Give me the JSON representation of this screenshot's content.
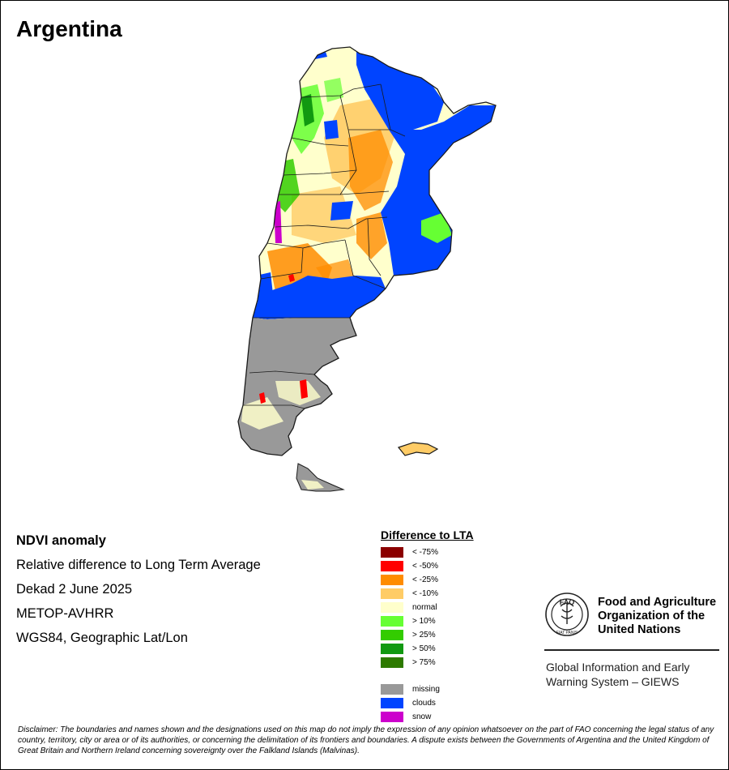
{
  "map": {
    "title": "Argentina",
    "colors": {
      "border": "#1a1a1a",
      "ocean": "#ffffff"
    }
  },
  "info": {
    "lines": [
      "NDVI anomaly",
      "Relative difference to Long Term Average",
      "Dekad 2 June 2025",
      "METOP-AVHRR",
      "WGS84, Geographic Lat/Lon"
    ]
  },
  "legend": {
    "title": "Difference to LTA",
    "items": [
      {
        "label": "< -75%",
        "color": "#8b0000"
      },
      {
        "label": "< -50%",
        "color": "#ff0000"
      },
      {
        "label": "< -25%",
        "color": "#ff8c00"
      },
      {
        "label": "< -10%",
        "color": "#ffcc66"
      },
      {
        "label": "normal",
        "color": "#ffffcc"
      },
      {
        "label": "> 10%",
        "color": "#66ff33"
      },
      {
        "label": "> 25%",
        "color": "#33cc00"
      },
      {
        "label": "> 50%",
        "color": "#119911"
      },
      {
        "label": "> 75%",
        "color": "#2d7a00"
      }
    ],
    "extra": [
      {
        "label": "missing",
        "color": "#999999"
      },
      {
        "label": "clouds",
        "color": "#0044ff"
      },
      {
        "label": "snow",
        "color": "#cc00cc"
      }
    ]
  },
  "fao": {
    "org_lines": [
      "Food and Agriculture",
      "Organization of the",
      "United Nations"
    ],
    "logo_text": "FAO",
    "logo_motto": "FIAT PANIS",
    "giews_lines": [
      "Global Information and Early",
      "Warning System – GIEWS"
    ]
  },
  "disclaimer": "Disclaimer: The boundaries and names shown and the designations used on this map do not imply the expression of any opinion whatsoever on the part of FAO concerning the legal status of any country, territory, city or area or of its authorities, or concerning the delimitation of its frontiers and boundaries. A dispute exists between the Governments of Argentina and the United Kingdom of Great Britain and Northern Ireland concerning sovereignty over the Falkland Islands (Malvinas)."
}
